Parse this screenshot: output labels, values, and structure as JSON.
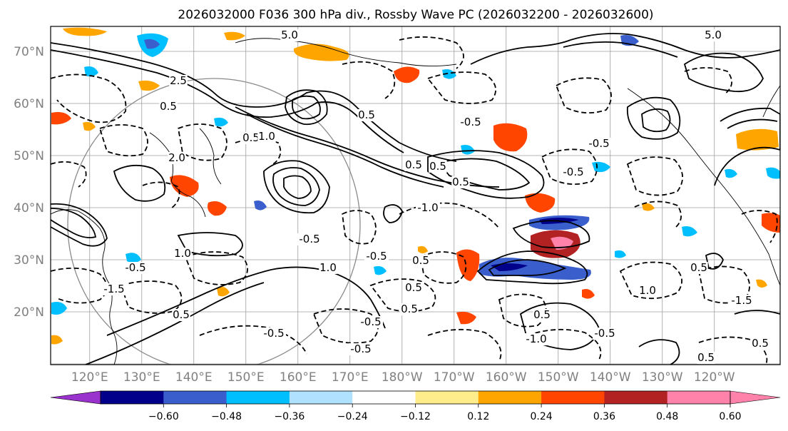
{
  "title": "2026032000 F036 300 hPa div., Rossby Wave PC (2026032200 - 2026032600)",
  "lat_labels": [
    "70°N",
    "60°N",
    "50°N",
    "40°N",
    "30°N",
    "20°N"
  ],
  "lon_labels": [
    "120°E",
    "130°E",
    "140°E",
    "150°E",
    "160°E",
    "170°E",
    "180°W",
    "170°W",
    "160°W",
    "150°W",
    "140°W",
    "130°W",
    "120°W"
  ],
  "contour_labels": [
    "5.0",
    "5.0",
    "2.5",
    "0.5",
    "0.5",
    "1.0",
    "0.5",
    "2.0",
    "0.5",
    "0.5",
    "-0.5",
    "-0.5",
    "0.5",
    "-1.0",
    "0.5",
    "-0.5",
    "-0.5",
    "1.0",
    "-0.5",
    "-0.5",
    "1.0",
    "0.5",
    "-1.5",
    "0.5",
    "-0.5",
    "-0.5",
    "-0.5",
    "0.5",
    "-1.5",
    "1.0",
    "0.5",
    "0.5",
    "-1.0",
    "-0.5",
    "0.5",
    "0.5"
  ],
  "colorbar": {
    "ticks": [
      "−0.60",
      "−0.48",
      "−0.36",
      "−0.24",
      "−0.12",
      "0.12",
      "0.24",
      "0.36",
      "0.48",
      "0.60"
    ],
    "colors": [
      "#9a32cd",
      "#00008b",
      "#3a5fcd",
      "#00bfff",
      "#b0e2ff",
      "#ffffff",
      "#ffec8b",
      "#ffa500",
      "#ff4500",
      "#b22222",
      "#ff82ab",
      "#ff82ab"
    ]
  }
}
